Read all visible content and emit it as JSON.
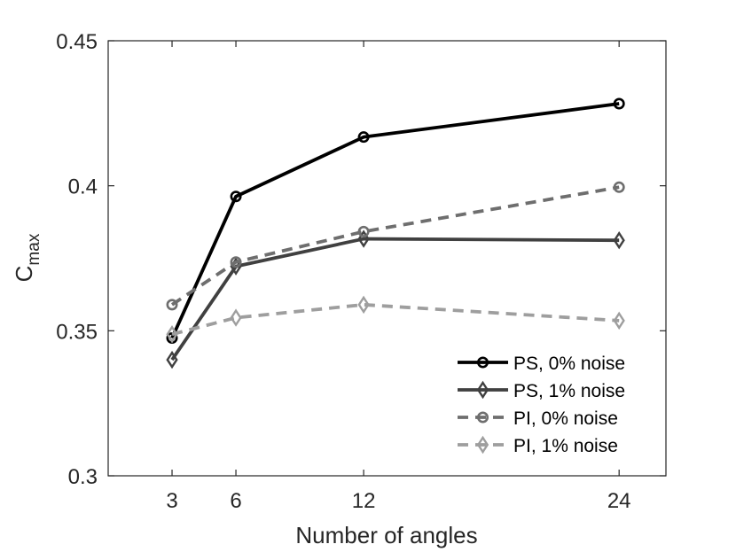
{
  "chart_data": {
    "type": "line",
    "title": "",
    "xlabel": "Number of angles",
    "ylabel_main": "C",
    "ylabel_sub": "max",
    "x": [
      3,
      6,
      12,
      24
    ],
    "xticks": [
      3,
      6,
      12,
      24
    ],
    "xtick_labels": [
      "3",
      "6",
      "12",
      "24"
    ],
    "yticks": [
      0.3,
      0.35,
      0.4,
      0.45
    ],
    "ytick_labels": [
      "0.3",
      "0.35",
      "0.4",
      "0.45"
    ],
    "xlim": [
      0,
      26.2
    ],
    "ylim": [
      0.3,
      0.45
    ],
    "grid": false,
    "legend_location": "bottom-right",
    "series": [
      {
        "name": "PS, 0% noise",
        "values": [
          0.3475,
          0.3963,
          0.4168,
          0.4283
        ],
        "color": "#000000",
        "dash": "solid",
        "marker": "circle"
      },
      {
        "name": "PS, 1% noise",
        "values": [
          0.34,
          0.3722,
          0.3817,
          0.3812
        ],
        "color": "#404040",
        "dash": "solid",
        "marker": "diamond"
      },
      {
        "name": "PI, 0% noise",
        "values": [
          0.359,
          0.3737,
          0.3842,
          0.3995
        ],
        "color": "#6e6e6e",
        "dash": "dashed",
        "marker": "circle"
      },
      {
        "name": "PI, 1% noise",
        "values": [
          0.3488,
          0.3545,
          0.359,
          0.3535
        ],
        "color": "#9e9e9e",
        "dash": "dashed",
        "marker": "diamond"
      }
    ]
  }
}
